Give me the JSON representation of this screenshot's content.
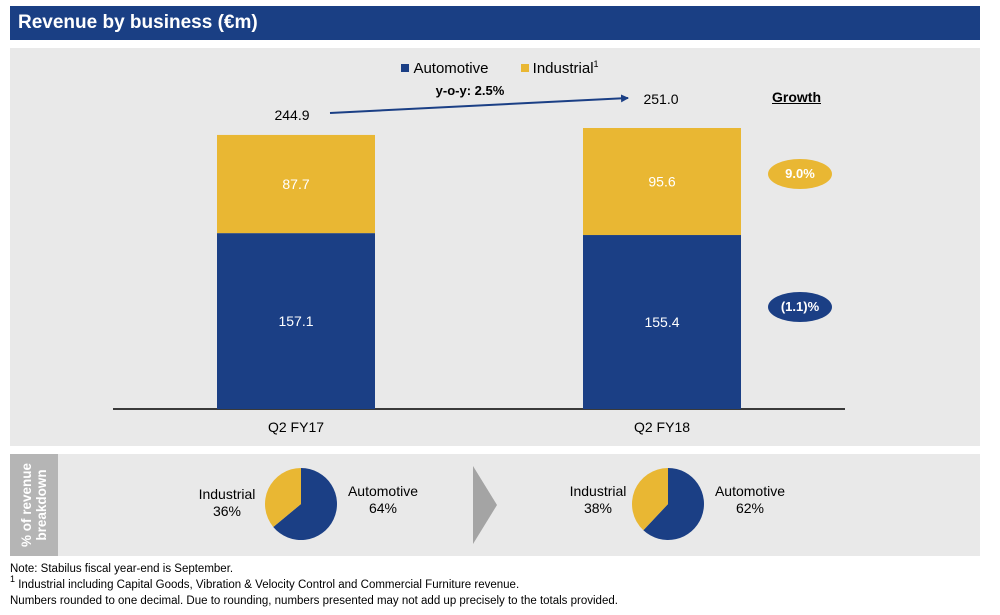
{
  "header": {
    "title": "Revenue by business (€m)"
  },
  "legend": {
    "automotive_label": "Automotive",
    "industrial_label": "Industrial",
    "industrial_footnote": "1"
  },
  "colors": {
    "automotive": "#1b3f85",
    "industrial": "#e9b733",
    "header": "#1a3f84"
  },
  "yoy_label": "y-o-y: 2.5%",
  "growth": {
    "heading": "Growth",
    "industrial": "9.0%",
    "automotive": "(1.1)%"
  },
  "chart_data": [
    {
      "type": "bar",
      "stacked": true,
      "categories": [
        "Q2 FY17",
        "Q2 FY18"
      ],
      "series": [
        {
          "name": "Automotive",
          "values": [
            157.1,
            155.4
          ],
          "labels": [
            "157.1",
            "155.4"
          ]
        },
        {
          "name": "Industrial",
          "values": [
            87.7,
            95.6
          ],
          "labels": [
            "87.7",
            "95.6"
          ]
        }
      ],
      "totals": [
        244.9,
        251.0
      ],
      "total_labels": [
        "244.9",
        "251.0"
      ],
      "ylim": [
        0,
        251
      ],
      "legend_position": "top-center"
    },
    {
      "type": "pie",
      "slices": [
        {
          "name": "Industrial",
          "value": 36,
          "label": "36%"
        },
        {
          "name": "Automotive",
          "value": 64,
          "label": "64%"
        }
      ]
    },
    {
      "type": "pie",
      "slices": [
        {
          "name": "Industrial",
          "value": 38,
          "label": "38%"
        },
        {
          "name": "Automotive",
          "value": 62,
          "label": "62%"
        }
      ]
    }
  ],
  "breakdown": {
    "side_label": "% of revenue breakdown"
  },
  "notes": [
    "Note: Stabilus fiscal year-end is September.",
    "Industrial including Capital Goods, Vibration & Velocity Control and Commercial Furniture revenue.",
    "Numbers rounded to one decimal. Due to rounding, numbers presented may not add up precisely to the totals provided."
  ],
  "notes_footnote_marker": "1"
}
